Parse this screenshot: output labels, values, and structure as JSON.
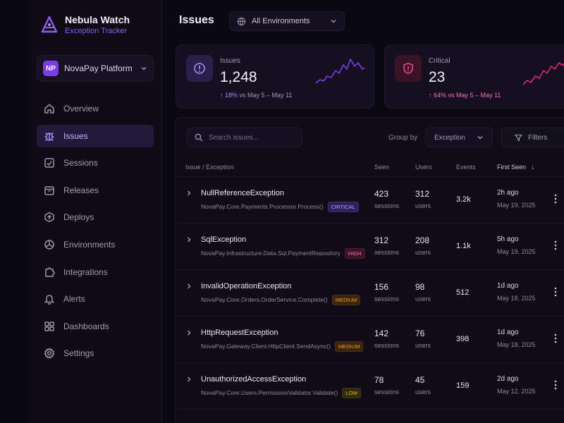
{
  "brand": {
    "name": "Nebula Watch",
    "subtitle": "Exception Tracker"
  },
  "project": {
    "initials": "NP",
    "name": "NovaPay Platform"
  },
  "sidebar": {
    "items": [
      {
        "label": "Overview",
        "icon": "home-icon",
        "active": false
      },
      {
        "label": "Issues",
        "icon": "bug-icon",
        "active": true
      },
      {
        "label": "Sessions",
        "icon": "sessions-icon",
        "active": false
      },
      {
        "label": "Releases",
        "icon": "box-icon",
        "active": false
      },
      {
        "label": "Deploys",
        "icon": "upload-icon",
        "active": false
      },
      {
        "label": "Environments",
        "icon": "cube-icon",
        "active": false
      },
      {
        "label": "Integrations",
        "icon": "puzzle-icon",
        "active": false
      },
      {
        "label": "Alerts",
        "icon": "bell-icon",
        "active": false
      },
      {
        "label": "Dashboards",
        "icon": "grid-icon",
        "active": false
      },
      {
        "label": "Settings",
        "icon": "gear-icon",
        "active": false
      }
    ]
  },
  "header": {
    "title": "Issues",
    "environment": "All Environments"
  },
  "stats": [
    {
      "label": "Issues",
      "value": "1,248",
      "trend_pct": "18%",
      "trend_text": "vs May 5 – May 11",
      "direction": "up",
      "color": "#8b5cf6"
    },
    {
      "label": "Critical",
      "value": "23",
      "trend_pct": "64%",
      "trend_text": "vs May 5 – May 11",
      "direction": "up",
      "color": "#ec4899"
    }
  ],
  "toolbar": {
    "search_placeholder": "Search issues...",
    "group_by_label": "Group by",
    "group_by_value": "Exception",
    "filters_label": "Filters"
  },
  "table": {
    "columns": {
      "issue": "Issue / Exception",
      "seen": "Seen",
      "users": "Users",
      "events": "Events",
      "first_seen": "First Seen"
    },
    "rows": [
      {
        "name": "NullReferenceException",
        "path": "NovaPay.Core.Payments.Processor.Process()",
        "severity": "CRITICAL",
        "sev_class": "critical",
        "seen": "423",
        "seen_unit": "sessions",
        "users": "312",
        "users_unit": "users",
        "events": "3.2k",
        "ago": "2h ago",
        "date": "May 19, 2025"
      },
      {
        "name": "SqlException",
        "path": "NovaPay.Infrastructure.Data.Sql.PaymentRepository",
        "severity": "HIGH",
        "sev_class": "high",
        "seen": "312",
        "seen_unit": "sessions",
        "users": "208",
        "users_unit": "users",
        "events": "1.1k",
        "ago": "5h ago",
        "date": "May 19, 2025"
      },
      {
        "name": "InvalidOperationException",
        "path": "NovaPay.Core.Orders.OrderService.Complete()",
        "severity": "MEDIUM",
        "sev_class": "medium",
        "seen": "156",
        "seen_unit": "sessions",
        "users": "98",
        "users_unit": "users",
        "events": "512",
        "ago": "1d ago",
        "date": "May 18, 2025"
      },
      {
        "name": "HttpRequestException",
        "path": "NovaPay.Gateway.Client.HttpClient.SendAsync()",
        "severity": "MEDIUM",
        "sev_class": "medium",
        "seen": "142",
        "seen_unit": "sessions",
        "users": "76",
        "users_unit": "users",
        "events": "398",
        "ago": "1d ago",
        "date": "May 18, 2025"
      },
      {
        "name": "UnauthorizedAccessException",
        "path": "NovaPay.Core.Users.PermissionValidator.Validate()",
        "severity": "LOW",
        "sev_class": "low",
        "seen": "78",
        "seen_unit": "sessions",
        "users": "45",
        "users_unit": "users",
        "events": "159",
        "ago": "2d ago",
        "date": "May 12, 2025"
      }
    ]
  }
}
